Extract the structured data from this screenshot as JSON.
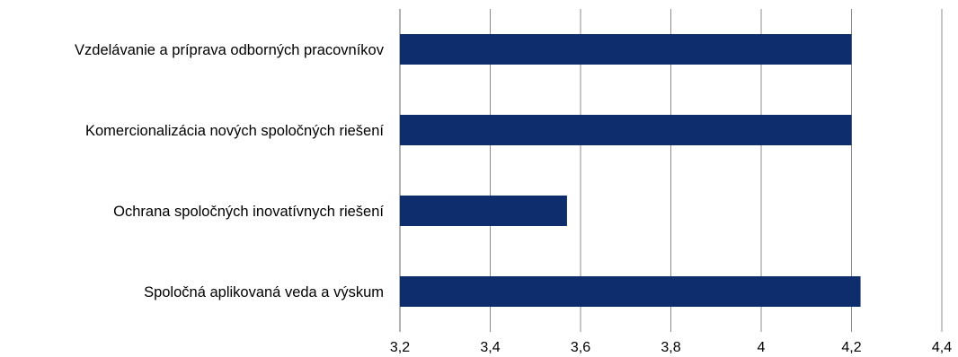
{
  "chart_data": {
    "type": "bar",
    "orientation": "horizontal",
    "categories": [
      "Vzdelávanie a príprava odborných pracovníkov",
      "Komercionalizácia nových spoločných riešení",
      "Ochrana spoločných inovatívnych riešení",
      "Spoločná aplikovaná veda a výskum"
    ],
    "values": [
      4.2,
      4.2,
      3.57,
      4.22
    ],
    "xlim": [
      3.2,
      4.4
    ],
    "x_ticks": [
      "3,2",
      "3,4",
      "3,6",
      "3,8",
      "4",
      "4,2",
      "4,4"
    ],
    "title": "",
    "xlabel": "",
    "ylabel": "",
    "grid": "vertical",
    "legend": "none",
    "colors": {
      "bar": "#0d2d6c",
      "grid": "#8c8c8c"
    }
  }
}
